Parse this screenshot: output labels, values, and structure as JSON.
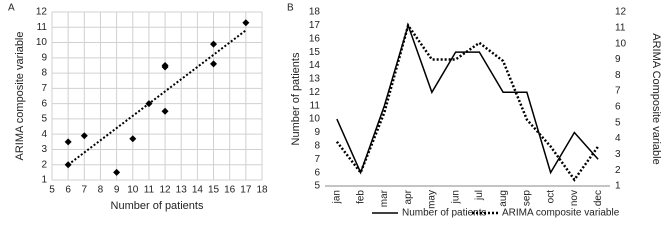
{
  "chart_data": [
    {
      "type": "scatter",
      "label": "A",
      "x_label": "Number of patients",
      "y_label": "ARIMA composite variable",
      "x": [
        6,
        6,
        7,
        9,
        10,
        11,
        12,
        12,
        12,
        15,
        15,
        17
      ],
      "y": [
        3.5,
        2,
        3.9,
        1.5,
        3.7,
        6,
        8.4,
        8.5,
        5.5,
        9.9,
        8.6,
        11.3
      ],
      "color": "#000000",
      "trendline": {
        "x": [
          6,
          17
        ],
        "y": [
          2,
          10.8
        ]
      },
      "xlim": [
        5,
        18
      ],
      "xticks": [
        5,
        6,
        7,
        8,
        9,
        10,
        11,
        12,
        13,
        14,
        15,
        16,
        17,
        18
      ],
      "ylim": [
        1,
        12
      ],
      "yticks": [
        1,
        2,
        3,
        4,
        5,
        6,
        7,
        8,
        9,
        10,
        11,
        12
      ],
      "grid": true
    },
    {
      "type": "line",
      "label": "B",
      "y_label": "Number of patients",
      "y2_label": "ARIMA Composite variable",
      "categories": [
        "jan",
        "feb",
        "mar",
        "apr",
        "may",
        "jun",
        "jul",
        "aug",
        "sep",
        "oct",
        "nov",
        "dec"
      ],
      "series": [
        {
          "name": "Number of patients",
          "color": "#000000",
          "style": "solid",
          "values": [
            10,
            6,
            11,
            17,
            12,
            15,
            15,
            12,
            12,
            6,
            9,
            7
          ]
        },
        {
          "name": "ARIMA composite variable",
          "color": "#000000",
          "style": "dotted",
          "axis": "y2",
          "values": [
            3.8,
            1.85,
            5.65,
            11.15,
            9.0,
            9.0,
            10.05,
            8.9,
            5.2,
            3.5,
            1.4,
            3.5
          ]
        }
      ],
      "ylim": [
        5,
        18
      ],
      "yticks": [
        5,
        6,
        7,
        8,
        9,
        10,
        11,
        12,
        13,
        14,
        15,
        16,
        17,
        18
      ],
      "y2lim": [
        1,
        12
      ],
      "y2ticks": [
        1,
        2,
        3,
        4,
        5,
        6,
        7,
        8,
        9,
        10,
        11,
        12
      ],
      "grid": false,
      "legend": "bottom"
    }
  ]
}
